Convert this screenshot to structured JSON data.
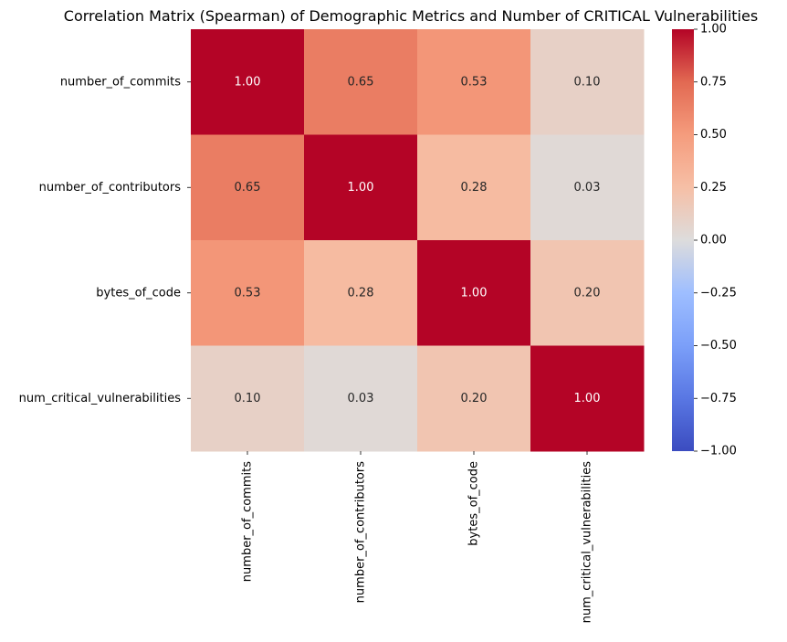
{
  "chart_data": {
    "type": "heatmap",
    "title": "Correlation Matrix (Spearman) of Demographic Metrics and Number of CRITICAL Vulnerabilities",
    "row_labels": [
      "number_of_commits",
      "number_of_contributors",
      "bytes_of_code",
      "num_critical_vulnerabilities"
    ],
    "col_labels": [
      "number_of_commits",
      "number_of_contributors",
      "bytes_of_code",
      "num_critical_vulnerabilities"
    ],
    "values": [
      [
        1.0,
        0.65,
        0.53,
        0.1
      ],
      [
        0.65,
        1.0,
        0.28,
        0.03
      ],
      [
        0.53,
        0.28,
        1.0,
        0.2
      ],
      [
        0.1,
        0.03,
        0.2,
        1.0
      ]
    ],
    "cell_text": [
      [
        "1.00",
        "0.65",
        "0.53",
        "0.10"
      ],
      [
        "0.65",
        "1.00",
        "0.28",
        "0.03"
      ],
      [
        "0.53",
        "0.28",
        "1.00",
        "0.20"
      ],
      [
        "0.10",
        "0.03",
        "0.20",
        "1.00"
      ]
    ],
    "vmin": -1.0,
    "vmax": 1.0,
    "colormap": "coolwarm",
    "colorbar_ticks": [
      "1.00",
      "0.75",
      "0.50",
      "0.25",
      "0.00",
      "−0.25",
      "−0.50",
      "−0.75",
      "−1.00"
    ],
    "colorbar_tick_values": [
      1.0,
      0.75,
      0.5,
      0.25,
      0.0,
      -0.25,
      -0.5,
      -0.75,
      -1.0
    ],
    "colorbar_position": "right",
    "grid": false
  }
}
